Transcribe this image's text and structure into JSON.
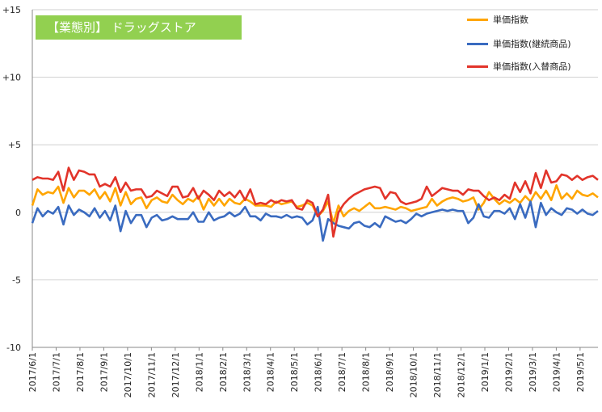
{
  "chart_data": {
    "type": "line",
    "title": "【業態別】 ドラッグストア",
    "ylim": [
      -10,
      15
    ],
    "yticks": [
      {
        "value": 15,
        "label": "+15"
      },
      {
        "value": 10,
        "label": "+10"
      },
      {
        "value": 5,
        "label": "+5"
      },
      {
        "value": 0,
        "label": "0"
      },
      {
        "value": -5,
        "label": "-5"
      },
      {
        "value": -10,
        "label": "-10"
      }
    ],
    "x_tick_labels": [
      "2017/6/1",
      "2017/7/1",
      "2017/8/1",
      "2017/9/1",
      "2017/10/1",
      "2017/11/1",
      "2017/12/1",
      "2018/1/1",
      "2018/2/1",
      "2018/3/1",
      "2018/4/1",
      "2018/5/1",
      "2018/6/1",
      "2018/7/1",
      "2018/8/1",
      "2018/9/1",
      "2018/10/1",
      "2018/11/1",
      "2018/12/1",
      "2019/1/1",
      "2019/2/1",
      "2019/3/1",
      "2019/4/1",
      "2019/5/1"
    ],
    "x_frequency": "weekly",
    "x_start": "2017/6/1",
    "grid": "horizontal",
    "legend_position": "top-right",
    "series": [
      {
        "name": "単価指数",
        "color": "#ffa500",
        "values": [
          0.5,
          1.7,
          1.3,
          1.5,
          1.4,
          1.9,
          0.7,
          1.8,
          1.1,
          1.6,
          1.6,
          1.3,
          1.7,
          1.0,
          1.5,
          0.8,
          1.8,
          0.5,
          1.5,
          0.6,
          1.0,
          1.1,
          0.3,
          0.9,
          1.1,
          0.8,
          0.7,
          1.3,
          0.9,
          0.6,
          1.0,
          0.8,
          1.2,
          0.2,
          1.0,
          0.5,
          1.0,
          0.5,
          1.0,
          0.7,
          0.6,
          1.0,
          0.8,
          0.5,
          0.5,
          0.5,
          0.4,
          0.8,
          0.6,
          0.7,
          0.8,
          0.4,
          0.5,
          0.7,
          0.5,
          -0.3,
          0.1,
          0.8,
          -0.8,
          0.5,
          -0.3,
          0.1,
          0.3,
          0.1,
          0.4,
          0.7,
          0.3,
          0.3,
          0.4,
          0.3,
          0.2,
          0.4,
          0.3,
          0.1,
          0.2,
          0.3,
          0.4,
          1.0,
          0.5,
          0.8,
          1.0,
          1.1,
          1.0,
          0.8,
          0.9,
          1.1,
          0.2,
          0.7,
          1.5,
          1.0,
          0.6,
          0.9,
          0.7,
          1.0,
          0.7,
          1.2,
          0.8,
          1.5,
          1.0,
          1.6,
          0.9,
          2.0,
          1.0,
          1.4,
          1.0,
          1.6,
          1.3,
          1.2,
          1.4,
          1.1
        ]
      },
      {
        "name": "単価指数(継続商品)",
        "color": "#3a6bc0",
        "values": [
          -0.8,
          0.3,
          -0.3,
          0.1,
          -0.1,
          0.4,
          -0.9,
          0.5,
          -0.2,
          0.2,
          0.0,
          -0.3,
          0.3,
          -0.4,
          0.1,
          -0.6,
          0.5,
          -1.4,
          0.1,
          -0.8,
          -0.2,
          -0.2,
          -1.1,
          -0.4,
          -0.2,
          -0.6,
          -0.5,
          -0.3,
          -0.5,
          -0.5,
          -0.5,
          0.0,
          -0.7,
          -0.7,
          0.0,
          -0.6,
          -0.4,
          -0.3,
          0.0,
          -0.3,
          -0.1,
          0.4,
          -0.3,
          -0.3,
          -0.6,
          -0.1,
          -0.3,
          -0.3,
          -0.4,
          -0.2,
          -0.4,
          -0.3,
          -0.4,
          -0.9,
          -0.6,
          0.4,
          -2.1,
          -0.5,
          -0.8,
          -1.0,
          -1.1,
          -1.2,
          -0.8,
          -0.7,
          -1.0,
          -1.1,
          -0.8,
          -1.1,
          -0.3,
          -0.5,
          -0.7,
          -0.6,
          -0.8,
          -0.5,
          -0.1,
          -0.3,
          -0.1,
          0.0,
          0.1,
          0.2,
          0.1,
          0.2,
          0.1,
          0.1,
          -0.8,
          -0.4,
          0.6,
          -0.3,
          -0.4,
          0.1,
          0.1,
          -0.1,
          0.3,
          -0.5,
          0.6,
          -0.4,
          0.8,
          -1.1,
          0.7,
          -0.2,
          0.3,
          0.0,
          -0.2,
          0.3,
          0.2,
          -0.1,
          0.2,
          -0.1,
          -0.2,
          0.1
        ]
      },
      {
        "name": "単価指数(入替商品)",
        "color": "#e2342a",
        "values": [
          2.4,
          2.6,
          2.5,
          2.5,
          2.4,
          3.0,
          1.6,
          3.3,
          2.4,
          3.1,
          3.0,
          2.8,
          2.8,
          1.9,
          2.1,
          1.9,
          2.6,
          1.5,
          2.2,
          1.6,
          1.7,
          1.7,
          1.1,
          1.2,
          1.6,
          1.4,
          1.2,
          1.9,
          1.9,
          1.1,
          1.2,
          1.8,
          1.0,
          1.6,
          1.3,
          0.9,
          1.6,
          1.2,
          1.5,
          1.1,
          1.6,
          0.9,
          1.7,
          0.6,
          0.7,
          0.6,
          0.9,
          0.7,
          0.9,
          0.8,
          0.9,
          0.3,
          0.2,
          0.9,
          0.7,
          -0.3,
          0.2,
          1.3,
          -1.8,
          0.0,
          0.6,
          1.0,
          1.3,
          1.5,
          1.7,
          1.8,
          1.9,
          1.8,
          1.0,
          1.5,
          1.4,
          0.8,
          0.6,
          0.7,
          0.8,
          1.0,
          1.9,
          1.2,
          1.5,
          1.8,
          1.7,
          1.6,
          1.6,
          1.3,
          1.7,
          1.6,
          1.6,
          1.2,
          0.9,
          1.1,
          0.9,
          1.3,
          1.0,
          2.2,
          1.5,
          2.3,
          1.4,
          2.9,
          1.8,
          3.1,
          2.2,
          2.3,
          2.8,
          2.7,
          2.4,
          2.7,
          2.4,
          2.6,
          2.7,
          2.4
        ]
      }
    ]
  }
}
